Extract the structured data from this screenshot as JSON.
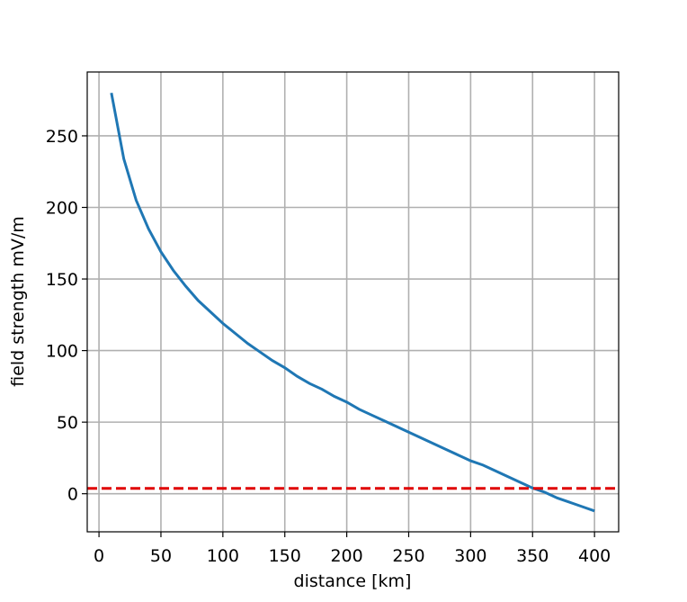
{
  "chart_data": {
    "type": "line",
    "xlabel": "distance [km]",
    "ylabel": "field strength mV/m",
    "x": [
      10,
      20,
      30,
      40,
      50,
      60,
      70,
      80,
      90,
      100,
      110,
      120,
      130,
      140,
      150,
      160,
      170,
      180,
      190,
      200,
      210,
      220,
      230,
      240,
      250,
      260,
      270,
      280,
      290,
      300,
      310,
      320,
      330,
      340,
      350,
      360,
      370,
      380,
      390,
      400
    ],
    "series": [
      {
        "color": "#1f77b4",
        "values": [
          280,
          234,
          205,
          185,
          169,
          156,
          145,
          135,
          127,
          119,
          112,
          105,
          99,
          93,
          88,
          82,
          77,
          73,
          68,
          64,
          59,
          55,
          51,
          47,
          43,
          39,
          35,
          31,
          27,
          23,
          20,
          16,
          12,
          8,
          4,
          1,
          -3,
          -6,
          -9,
          -12
        ]
      }
    ],
    "hlines": [
      {
        "value": 3.7,
        "color": "#e00000",
        "style": "dashed"
      }
    ],
    "xlim": [
      -9.5,
      419.5
    ],
    "ylim": [
      -26.6,
      294.6
    ],
    "xticks": [
      0,
      50,
      100,
      150,
      200,
      250,
      300,
      350,
      400
    ],
    "yticks": [
      0,
      50,
      100,
      150,
      200,
      250
    ],
    "grid": true
  }
}
